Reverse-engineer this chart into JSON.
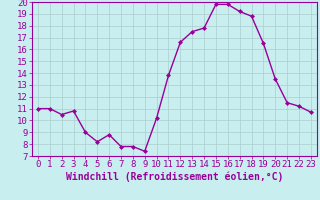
{
  "x": [
    0,
    1,
    2,
    3,
    4,
    5,
    6,
    7,
    8,
    9,
    10,
    11,
    12,
    13,
    14,
    15,
    16,
    17,
    18,
    19,
    20,
    21,
    22,
    23
  ],
  "y": [
    11,
    11,
    10.5,
    10.8,
    9,
    8.2,
    8.8,
    7.8,
    7.8,
    7.4,
    10.2,
    13.8,
    16.6,
    17.5,
    17.8,
    19.8,
    19.8,
    19.2,
    18.8,
    16.5,
    13.5,
    11.5,
    11.2,
    10.7
  ],
  "line_color": "#990099",
  "marker": "D",
  "marker_size": 2.0,
  "bg_color": "#c8eef0",
  "grid_color": "#aacccc",
  "xlabel": "Windchill (Refroidissement éolien,°C)",
  "xlabel_color": "#990099",
  "tick_color": "#990099",
  "spine_color": "#990099",
  "ylim": [
    7,
    20
  ],
  "xlim": [
    -0.5,
    23.5
  ],
  "yticks": [
    7,
    8,
    9,
    10,
    11,
    12,
    13,
    14,
    15,
    16,
    17,
    18,
    19,
    20
  ],
  "xticks": [
    0,
    1,
    2,
    3,
    4,
    5,
    6,
    7,
    8,
    9,
    10,
    11,
    12,
    13,
    14,
    15,
    16,
    17,
    18,
    19,
    20,
    21,
    22,
    23
  ],
  "font_size": 6.5,
  "xlabel_fontsize": 7.0,
  "line_width": 1.0
}
